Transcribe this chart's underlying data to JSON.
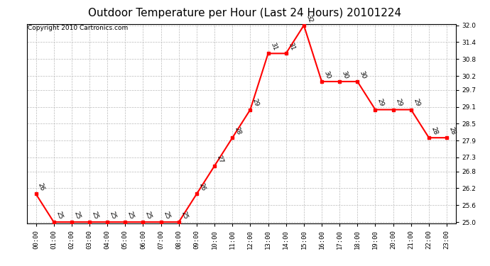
{
  "title": "Outdoor Temperature per Hour (Last 24 Hours) 20101224",
  "copyright": "Copyright 2010 Cartronics.com",
  "hours": [
    "00:00",
    "01:00",
    "02:00",
    "03:00",
    "04:00",
    "05:00",
    "06:00",
    "07:00",
    "08:00",
    "09:00",
    "10:00",
    "11:00",
    "12:00",
    "13:00",
    "14:00",
    "15:00",
    "16:00",
    "17:00",
    "18:00",
    "19:00",
    "20:00",
    "21:00",
    "22:00",
    "23:00"
  ],
  "temps": [
    26,
    25,
    25,
    25,
    25,
    25,
    25,
    25,
    25,
    26,
    27,
    28,
    29,
    31,
    31,
    32,
    30,
    30,
    30,
    29,
    29,
    29,
    28,
    28
  ],
  "ylim_min": 25.0,
  "ylim_max": 32.0,
  "line_color": "red",
  "marker_color": "red",
  "bg_color": "#ffffff",
  "plot_bg_color": "#ffffff",
  "grid_color": "#bbbbbb",
  "title_fontsize": 11,
  "copyright_fontsize": 6.5,
  "label_fontsize": 6.5,
  "tick_fontsize": 6.5,
  "yticks": [
    25.0,
    25.6,
    26.2,
    26.8,
    27.3,
    27.9,
    28.5,
    29.1,
    29.7,
    30.2,
    30.8,
    31.4,
    32.0
  ]
}
